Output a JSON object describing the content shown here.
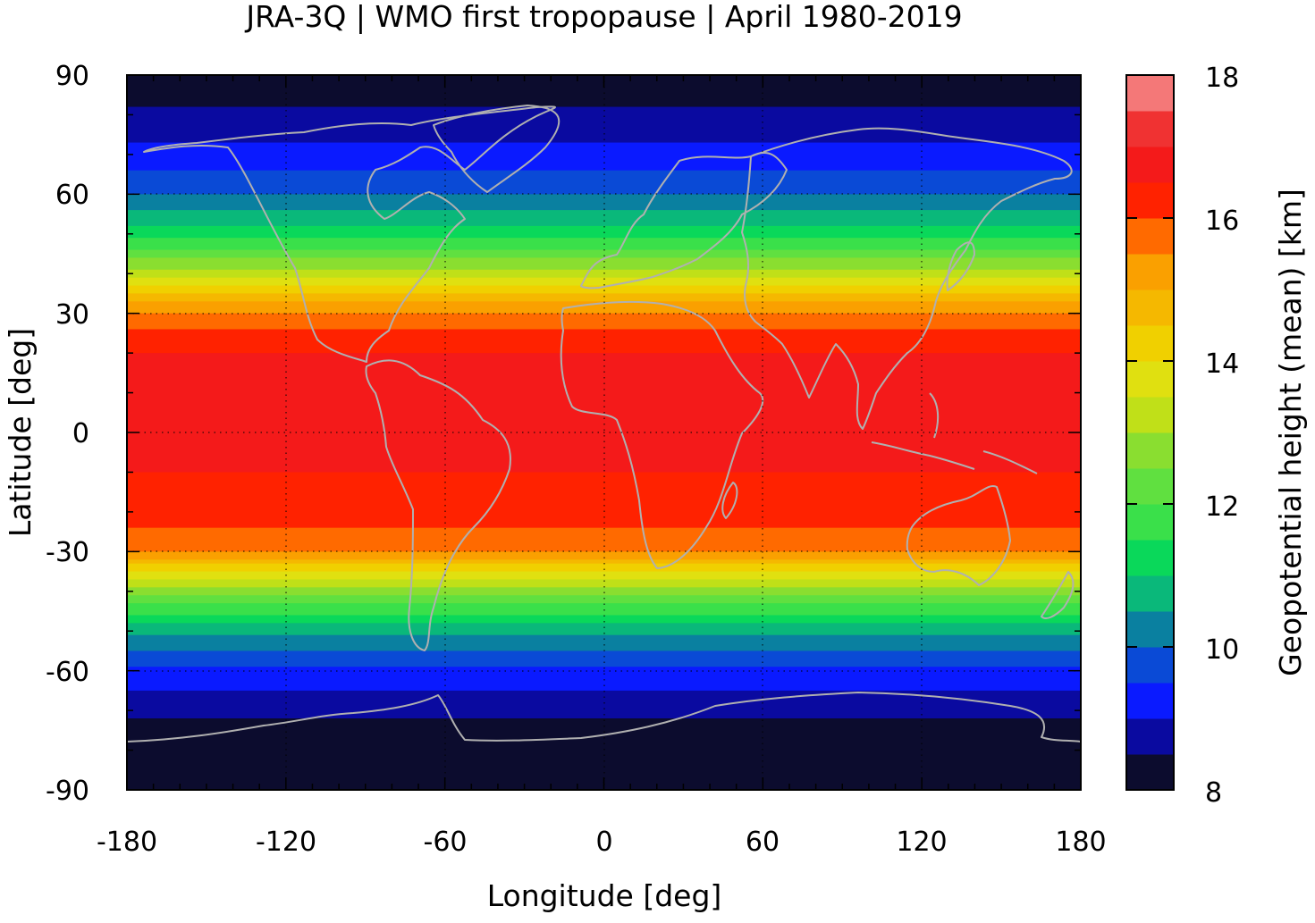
{
  "title": "JRA-3Q | WMO first tropopause | April 1980-2019",
  "map": {
    "x_label": "Longitude [deg]",
    "y_label": "Latitude [deg]",
    "x_range": [
      -180,
      180
    ],
    "y_range": [
      -90,
      90
    ],
    "x_ticks": [
      "-180",
      "-120",
      "-60",
      "0",
      "60",
      "120",
      "180"
    ],
    "y_ticks": [
      "90",
      "60",
      "30",
      "0",
      "-30",
      "-60",
      "-90"
    ],
    "coastline_color": "#b0b0b0",
    "grid": "dotted at 30 deg intervals"
  },
  "colorbar": {
    "label": "Geopotential height (mean) [km]",
    "range": [
      8,
      18
    ],
    "step": 0.5,
    "ticks": [
      "18",
      "16",
      "14",
      "12",
      "10",
      "8"
    ],
    "colors": [
      "#0c0c2e",
      "#0a0aa0",
      "#0a1aff",
      "#0a4ad6",
      "#0a80a0",
      "#0ab87a",
      "#0ad85a",
      "#3ae04a",
      "#60e040",
      "#8ade30",
      "#c0e018",
      "#e0e010",
      "#f0d000",
      "#f5b800",
      "#faa000",
      "#ff6a00",
      "#ff2200",
      "#f41a1a",
      "#f03232",
      "#f47878",
      "#ffd0d0"
    ]
  },
  "zonal_profile_km": {
    "latitudes": [
      90,
      80,
      70,
      60,
      50,
      40,
      30,
      20,
      10,
      0,
      -10,
      -20,
      -30,
      -40,
      -50,
      -60,
      -70,
      -80,
      -90
    ],
    "values": [
      8.1,
      8.6,
      9.2,
      10.0,
      11.2,
      13.2,
      15.6,
      16.5,
      16.6,
      16.6,
      16.5,
      16.3,
      15.5,
      12.6,
      10.6,
      9.4,
      8.6,
      8.1,
      8.0
    ]
  }
}
